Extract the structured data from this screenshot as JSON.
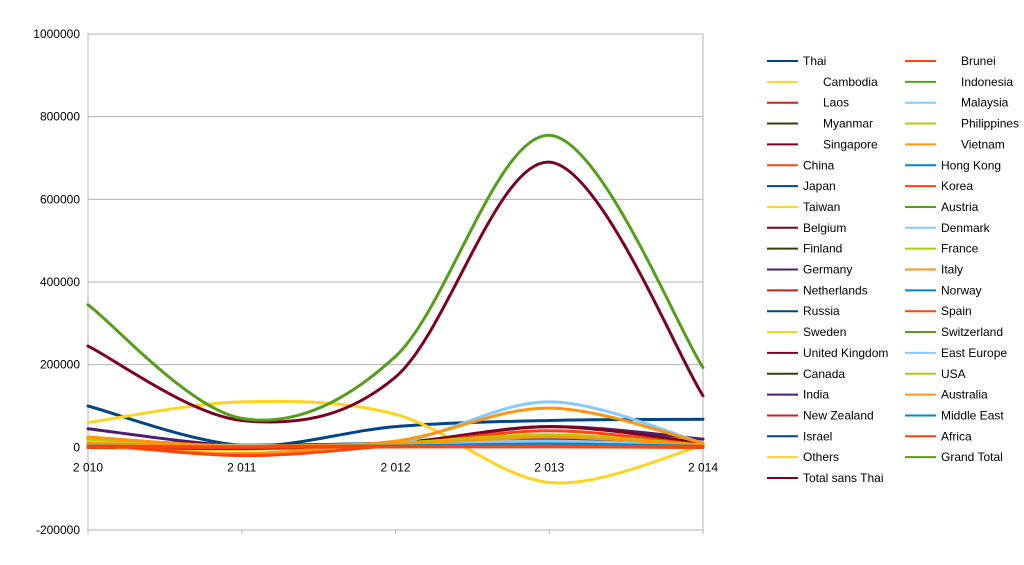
{
  "chart_data": {
    "type": "line",
    "title": "",
    "xlabel": "",
    "ylabel": "",
    "x": [
      "2 010",
      "2 011",
      "2 012",
      "2 013",
      "2 014"
    ],
    "ylim": [
      -200000,
      1000000
    ],
    "yticks": [
      "1000000",
      "800000",
      "600000",
      "400000",
      "200000",
      "0",
      "-200000"
    ],
    "grid": "horizontal",
    "legend_position": "right",
    "series": [
      {
        "name": "Thai",
        "color": "#004586",
        "values": [
          100000,
          5000,
          50000,
          65000,
          68000
        ]
      },
      {
        "name": "Cambodia",
        "color": "#ffd320",
        "values": [
          0,
          -5000,
          5000,
          3000,
          0
        ]
      },
      {
        "name": "Laos",
        "color": "#c9211e",
        "values": [
          0,
          -3000,
          3000,
          2000,
          0
        ]
      },
      {
        "name": "Myanmar",
        "color": "#314004",
        "values": [
          0,
          -2000,
          2000,
          5000,
          1000
        ]
      },
      {
        "name": "Singapore",
        "color": "#7e0021",
        "values": [
          5000,
          2000,
          5000,
          10000,
          2000
        ]
      },
      {
        "name": "China",
        "color": "#ff420e",
        "values": [
          10000,
          3000,
          10000,
          20000,
          3000
        ]
      },
      {
        "name": "Japan",
        "color": "#004586",
        "values": [
          15000,
          5000,
          10000,
          20000,
          5000
        ]
      },
      {
        "name": "Taiwan",
        "color": "#ffd320",
        "values": [
          5000,
          2000,
          5000,
          10000,
          2000
        ]
      },
      {
        "name": "Belgium",
        "color": "#7e0021",
        "values": [
          3000,
          1000,
          3000,
          6000,
          1000
        ]
      },
      {
        "name": "Finland",
        "color": "#314004",
        "values": [
          2000,
          1000,
          3000,
          5000,
          1000
        ]
      },
      {
        "name": "Germany",
        "color": "#4b1f6f",
        "values": [
          45000,
          3000,
          10000,
          50000,
          20000
        ]
      },
      {
        "name": "Netherlands",
        "color": "#c9211e",
        "values": [
          5000,
          1000,
          5000,
          10000,
          2000
        ]
      },
      {
        "name": "Russia",
        "color": "#004586",
        "values": [
          10000,
          5000,
          10000,
          25000,
          5000
        ]
      },
      {
        "name": "Sweden",
        "color": "#ffd320",
        "values": [
          60000,
          110000,
          80000,
          -85000,
          5000
        ]
      },
      {
        "name": "United Kingdom",
        "color": "#7e0021",
        "values": [
          20000,
          5000,
          10000,
          50000,
          10000
        ]
      },
      {
        "name": "Canada",
        "color": "#314004",
        "values": [
          3000,
          1000,
          3000,
          8000,
          2000
        ]
      },
      {
        "name": "India",
        "color": "#4b1f6f",
        "values": [
          3000,
          1000,
          3000,
          10000,
          2000
        ]
      },
      {
        "name": "New Zealand",
        "color": "#c9211e",
        "values": [
          2000,
          1000,
          2000,
          5000,
          1000
        ]
      },
      {
        "name": "Israel",
        "color": "#004586",
        "values": [
          5000,
          1000,
          5000,
          15000,
          2000
        ]
      },
      {
        "name": "Others",
        "color": "#ffd320",
        "values": [
          15000,
          3000,
          8000,
          30000,
          5000
        ]
      },
      {
        "name": "Total sans Thai",
        "color": "#7e0021",
        "values": [
          245000,
          65000,
          170000,
          690000,
          125000
        ]
      },
      {
        "name": "Brunei",
        "color": "#ff420e",
        "values": [
          0,
          0,
          1000,
          1000,
          0
        ]
      },
      {
        "name": "Indonesia",
        "color": "#579d1c",
        "values": [
          3000,
          1000,
          3000,
          8000,
          2000
        ]
      },
      {
        "name": "Malaysia",
        "color": "#83caff",
        "values": [
          10000,
          5000,
          10000,
          110000,
          10000
        ]
      },
      {
        "name": "Philippines",
        "color": "#aecf00",
        "values": [
          2000,
          1000,
          3000,
          10000,
          1000
        ]
      },
      {
        "name": "Vietnam",
        "color": "#ff950e",
        "values": [
          5000,
          -15000,
          10000,
          15000,
          3000
        ]
      },
      {
        "name": "Hong Kong",
        "color": "#0084d1",
        "values": [
          3000,
          1000,
          3000,
          10000,
          2000
        ]
      },
      {
        "name": "Korea",
        "color": "#ff420e",
        "values": [
          10000,
          -20000,
          5000,
          40000,
          5000
        ]
      },
      {
        "name": "Austria",
        "color": "#579d1c",
        "values": [
          2000,
          1000,
          3000,
          6000,
          1000
        ]
      },
      {
        "name": "Denmark",
        "color": "#83caff",
        "values": [
          2000,
          1000,
          3000,
          6000,
          1000
        ]
      },
      {
        "name": "France",
        "color": "#aecf00",
        "values": [
          20000,
          3000,
          10000,
          30000,
          5000
        ]
      },
      {
        "name": "Italy",
        "color": "#ff950e",
        "values": [
          25000,
          2000,
          15000,
          95000,
          10000
        ]
      },
      {
        "name": "Norway",
        "color": "#0084d1",
        "values": [
          2000,
          1000,
          3000,
          5000,
          1000
        ]
      },
      {
        "name": "Spain",
        "color": "#ff420e",
        "values": [
          3000,
          1000,
          3000,
          8000,
          2000
        ]
      },
      {
        "name": "Switzerland",
        "color": "#579d1c",
        "values": [
          3000,
          1000,
          3000,
          10000,
          2000
        ]
      },
      {
        "name": "East Europe",
        "color": "#83caff",
        "values": [
          5000,
          2000,
          5000,
          15000,
          3000
        ]
      },
      {
        "name": "USA",
        "color": "#aecf00",
        "values": [
          10000,
          3000,
          8000,
          30000,
          5000
        ]
      },
      {
        "name": "Australia",
        "color": "#ff950e",
        "values": [
          10000,
          3000,
          8000,
          25000,
          5000
        ]
      },
      {
        "name": "Middle East",
        "color": "#0084d1",
        "values": [
          3000,
          1000,
          3000,
          8000,
          2000
        ]
      },
      {
        "name": "Africa",
        "color": "#ff420e",
        "values": [
          1000,
          500,
          1000,
          3000,
          500
        ]
      },
      {
        "name": "Grand Total",
        "color": "#579d1c",
        "values": [
          345000,
          70000,
          220000,
          755000,
          193000
        ]
      }
    ]
  }
}
